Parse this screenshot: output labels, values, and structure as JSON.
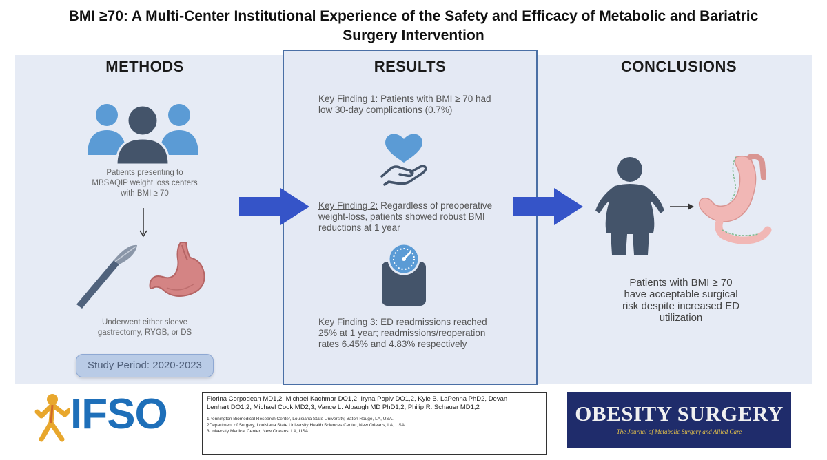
{
  "title": {
    "line1": "BMI ≥70: A Multi-Center Institutional Experience of the Safety and Efficacy of Metabolic and Bariatric",
    "line2": "Surgery Intervention"
  },
  "methods": {
    "heading": "METHODS",
    "patients_text": [
      "Patients presenting to",
      "MBSAQIP weight loss centers",
      "with BMI ≥ 70"
    ],
    "surgery_text": [
      "Underwent either sleeve",
      "gastrectomy, RYGB, or DS"
    ],
    "study_period": "Study Period: 2020-2023",
    "icons": [
      "people-group-icon",
      "down-arrow-icon",
      "scalpel-icon",
      "stomach-icon"
    ]
  },
  "results": {
    "heading": "RESULTS",
    "findings": [
      {
        "label": "Key Finding 1:",
        "text1": " Patients with BMI ≥ 70 had",
        "text2": "low 30-day complications (0.7%)",
        "text3": ""
      },
      {
        "label": "Key Finding 2:",
        "text1": " Regardless of preoperative",
        "text2": "weight-loss, patients showed robust BMI",
        "text3": "reductions at 1 year"
      },
      {
        "label": "Key Finding 3:",
        "text1": " ED readmissions reached",
        "text2": "25% at 1 year; readmissions/reoperation",
        "text3": "rates 6.45% and 4.83% respectively"
      }
    ],
    "icons": [
      "heart-hand-icon",
      "scale-icon"
    ]
  },
  "conclusions": {
    "heading": "CONCLUSIONS",
    "text": [
      "Patients with BMI ≥ 70",
      "have acceptable surgical",
      "risk despite increased ED",
      "utilization"
    ],
    "icons": [
      "person-icon",
      "right-arrow-icon",
      "surgery-stomach-icon"
    ]
  },
  "footer": {
    "logo_text": "IFSO",
    "authors_line1": "Florina Corpodean MD1,2, Michael Kachmar DO1,2, Iryna Popiv DO1,2, Kyle B. LaPenna PhD2, Devan",
    "authors_line2": "Lenhart DO1,2, Michael Cook MD2,3, Vance L. Albaugh MD PhD1,2, Philip R. Schauer MD1,2",
    "aff1": "1Pennington Biomedical Research Center, Louisiana State University, Baton Rouge, LA, USA.",
    "aff2": "2Department of Surgery, Louisiana State University Health Sciences Center, New Orleans, LA, USA",
    "aff3": "3University Medical Center, New Orleans, LA, USA.",
    "journal_name": "OBESITY SURGERY",
    "journal_sub": "The Journal of Metabolic Surgery and Allied Care"
  },
  "colors": {
    "panel_bg": "#e6ebf5",
    "accent_blue": "#3554c8",
    "icon_blue": "#5b9bd5",
    "dark_slate": "#44546a",
    "journal_navy": "#1f2c6b"
  }
}
